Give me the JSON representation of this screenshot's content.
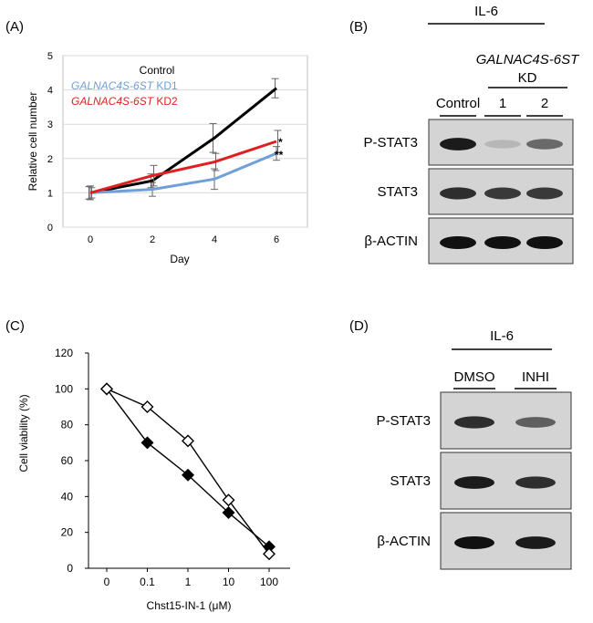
{
  "panel_labels": {
    "a": "(A)",
    "b": "(B)",
    "c": "(C)",
    "d": "(D)"
  },
  "panel_b": {
    "treatment": "IL-6",
    "gene_label": "GALNAC4S-6ST",
    "kd_label": "KD",
    "lanes": [
      "Control",
      "1",
      "2"
    ],
    "blots": [
      {
        "label": "P-STAT3",
        "intensities": [
          0.95,
          0.15,
          0.55
        ]
      },
      {
        "label": "STAT3",
        "intensities": [
          0.85,
          0.8,
          0.8
        ]
      },
      {
        "label": "β-ACTIN",
        "intensities": [
          1.0,
          1.0,
          1.0
        ]
      }
    ]
  },
  "panel_d": {
    "treatment": "IL-6",
    "lanes": [
      "DMSO",
      "INHI"
    ],
    "blots": [
      {
        "label": "P-STAT3",
        "intensities": [
          0.85,
          0.6
        ]
      },
      {
        "label": "STAT3",
        "intensities": [
          0.95,
          0.85
        ]
      },
      {
        "label": "β-ACTIN",
        "intensities": [
          1.0,
          0.95
        ]
      }
    ]
  },
  "chart_data": [
    {
      "type": "line",
      "panel": "A",
      "xlabel": "Day",
      "ylabel": "Relative cell number",
      "x": [
        0,
        2,
        4,
        6
      ],
      "xticks": [
        "0",
        "2",
        "4",
        "6"
      ],
      "ylim": [
        0,
        5
      ],
      "yticks": [
        "0",
        "1",
        "2",
        "3",
        "4",
        "5"
      ],
      "grid": true,
      "legend_position": "top-left",
      "series": [
        {
          "name": "Control",
          "color": "#000000",
          "values": [
            1.0,
            1.35,
            2.6,
            4.05
          ],
          "errors": [
            0.18,
            0.2,
            0.42,
            0.28
          ]
        },
        {
          "name": "GALNAC4S-6ST KD1",
          "name_italic": "GALNAC4S-6ST",
          "name_plain": " KD1",
          "color": "#6f9fd8",
          "values": [
            1.0,
            1.1,
            1.4,
            2.15
          ],
          "errors": [
            0.2,
            0.2,
            0.3,
            0.2
          ]
        },
        {
          "name": "GALNAC4S-6ST KD2",
          "name_italic": "GALNAC4S-6ST",
          "name_plain": " KD2",
          "color": "#e02020",
          "values": [
            1.0,
            1.5,
            1.9,
            2.5
          ],
          "errors": [
            0.15,
            0.3,
            0.25,
            0.32
          ]
        }
      ],
      "annotations": [
        "*",
        "**"
      ]
    },
    {
      "type": "line",
      "panel": "C",
      "xlabel": "Chst15-IN-1 (μM)",
      "ylabel": "Cell viability (%)",
      "categories": [
        "0",
        "0.1",
        "1",
        "10",
        "100"
      ],
      "ylim": [
        0,
        120
      ],
      "yticks": [
        "0",
        "20",
        "40",
        "60",
        "80",
        "100",
        "120"
      ],
      "grid": false,
      "series": [
        {
          "marker": "filled-diamond",
          "color": "#000000",
          "values": [
            100,
            70,
            52,
            31,
            12
          ]
        },
        {
          "marker": "open-diamond",
          "color": "#000000",
          "values": [
            100,
            90,
            71,
            38,
            8
          ]
        }
      ]
    }
  ]
}
